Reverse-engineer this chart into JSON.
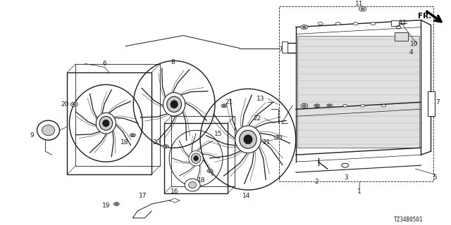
{
  "bg_color": "#ffffff",
  "line_color": "#1a1a1a",
  "text_color": "#1a1a1a",
  "fig_width": 6.4,
  "fig_height": 3.2,
  "dpi": 100,
  "diagram_code": "TZ34B0501",
  "fr_label": "FR."
}
